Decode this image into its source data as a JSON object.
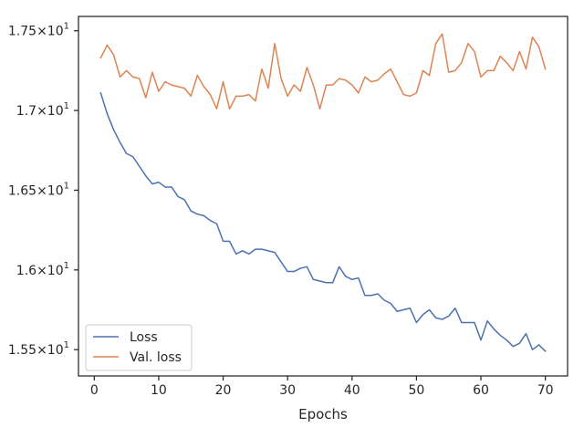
{
  "chart_data": {
    "type": "line",
    "xlabel": "Epochs",
    "ylabel": "",
    "xlim": [
      -2.45,
      73.45
    ],
    "ylim": [
      15.335,
      17.59
    ],
    "x_ticks": [
      0,
      10,
      20,
      30,
      40,
      50,
      60,
      70
    ],
    "y_ticks": [
      {
        "value": 15.5,
        "mantissa": "1.55",
        "exp": "1"
      },
      {
        "value": 16.0,
        "mantissa": "1.6",
        "exp": "1"
      },
      {
        "value": 16.5,
        "mantissa": "1.65",
        "exp": "1"
      },
      {
        "value": 17.0,
        "mantissa": "1.7",
        "exp": "1"
      },
      {
        "value": 17.5,
        "mantissa": "1.75",
        "exp": "1"
      }
    ],
    "y_tick_base": "10",
    "grid": false,
    "legend_position": "lower-left",
    "x": [
      1,
      2,
      3,
      4,
      5,
      6,
      7,
      8,
      9,
      10,
      11,
      12,
      13,
      14,
      15,
      16,
      17,
      18,
      19,
      20,
      21,
      22,
      23,
      24,
      25,
      26,
      27,
      28,
      29,
      30,
      31,
      32,
      33,
      34,
      35,
      36,
      37,
      38,
      39,
      40,
      41,
      42,
      43,
      44,
      45,
      46,
      47,
      48,
      49,
      50,
      51,
      52,
      53,
      54,
      55,
      56,
      57,
      58,
      59,
      60,
      61,
      62,
      63,
      64,
      65,
      66,
      67,
      68,
      69,
      70
    ],
    "series": [
      {
        "name": "Loss",
        "color": "#4c72b0",
        "values": [
          17.11,
          16.98,
          16.88,
          16.8,
          16.73,
          16.71,
          16.65,
          16.59,
          16.54,
          16.55,
          16.52,
          16.52,
          16.46,
          16.44,
          16.37,
          16.35,
          16.34,
          16.31,
          16.29,
          16.18,
          16.18,
          16.1,
          16.12,
          16.1,
          16.13,
          16.13,
          16.12,
          16.11,
          16.05,
          15.99,
          15.99,
          16.01,
          16.02,
          15.94,
          15.93,
          15.92,
          15.92,
          16.02,
          15.96,
          15.94,
          15.95,
          15.84,
          15.84,
          15.85,
          15.81,
          15.79,
          15.74,
          15.75,
          15.76,
          15.67,
          15.72,
          15.75,
          15.7,
          15.69,
          15.71,
          15.76,
          15.67,
          15.67,
          15.67,
          15.56,
          15.68,
          15.63,
          15.59,
          15.56,
          15.52,
          15.54,
          15.6,
          15.5,
          15.53,
          15.49
        ]
      },
      {
        "name": "Val. loss",
        "color": "#dd8452",
        "values": [
          17.33,
          17.41,
          17.35,
          17.21,
          17.25,
          17.21,
          17.2,
          17.08,
          17.24,
          17.12,
          17.18,
          17.16,
          17.15,
          17.14,
          17.09,
          17.22,
          17.15,
          17.1,
          17.01,
          17.18,
          17.01,
          17.09,
          17.09,
          17.1,
          17.06,
          17.26,
          17.14,
          17.42,
          17.2,
          17.09,
          17.16,
          17.12,
          17.27,
          17.16,
          17.01,
          17.16,
          17.16,
          17.2,
          17.19,
          17.16,
          17.11,
          17.21,
          17.18,
          17.19,
          17.23,
          17.26,
          17.18,
          17.1,
          17.09,
          17.11,
          17.25,
          17.22,
          17.42,
          17.48,
          17.24,
          17.25,
          17.3,
          17.42,
          17.37,
          17.21,
          17.25,
          17.25,
          17.34,
          17.3,
          17.25,
          17.37,
          17.26,
          17.46,
          17.4,
          17.26
        ]
      }
    ]
  }
}
